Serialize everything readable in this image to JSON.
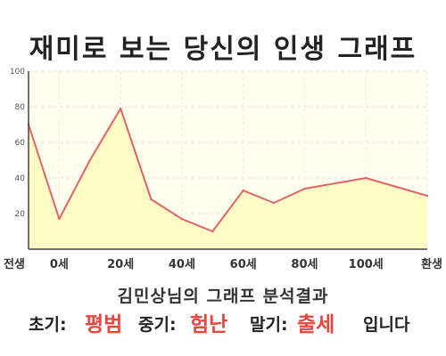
{
  "title": "재미로 보는 당신의 인생 그래프",
  "subtitle": "김민상님의 그래프 분석결과",
  "result": {
    "early_label": "초기:",
    "early_value": "평범",
    "mid_label": "중기:",
    "mid_value": "험난",
    "late_label": "말기:",
    "late_value": "출세",
    "suffix": "입니다"
  },
  "colors": {
    "line": "#e06565",
    "fill": "#fefcc6",
    "plot_bg": "#fffff0",
    "accent_text": "#e8473f"
  },
  "chart_data": {
    "type": "area",
    "title": "재미로 보는 당신의 인생 그래프",
    "xlabel": "",
    "ylabel": "",
    "ylim": [
      0,
      100
    ],
    "yticks": [
      20,
      40,
      60,
      80,
      100
    ],
    "xlim": [
      -10,
      120
    ],
    "xticks": [
      {
        "x": -10,
        "label": "전생"
      },
      {
        "x": 0,
        "label": "0세"
      },
      {
        "x": 20,
        "label": "20세"
      },
      {
        "x": 40,
        "label": "40세"
      },
      {
        "x": 60,
        "label": "60세"
      },
      {
        "x": 80,
        "label": "80세"
      },
      {
        "x": 100,
        "label": "100세"
      },
      {
        "x": 120,
        "label": "환생"
      }
    ],
    "grid": true,
    "series": [
      {
        "x": [
          -10,
          0,
          10,
          20,
          30,
          40,
          50,
          60,
          70,
          80,
          90,
          100,
          110,
          120
        ],
        "values": [
          70,
          17,
          50,
          79,
          28,
          17,
          10,
          33,
          26,
          34,
          37,
          40,
          35,
          30
        ]
      }
    ]
  }
}
